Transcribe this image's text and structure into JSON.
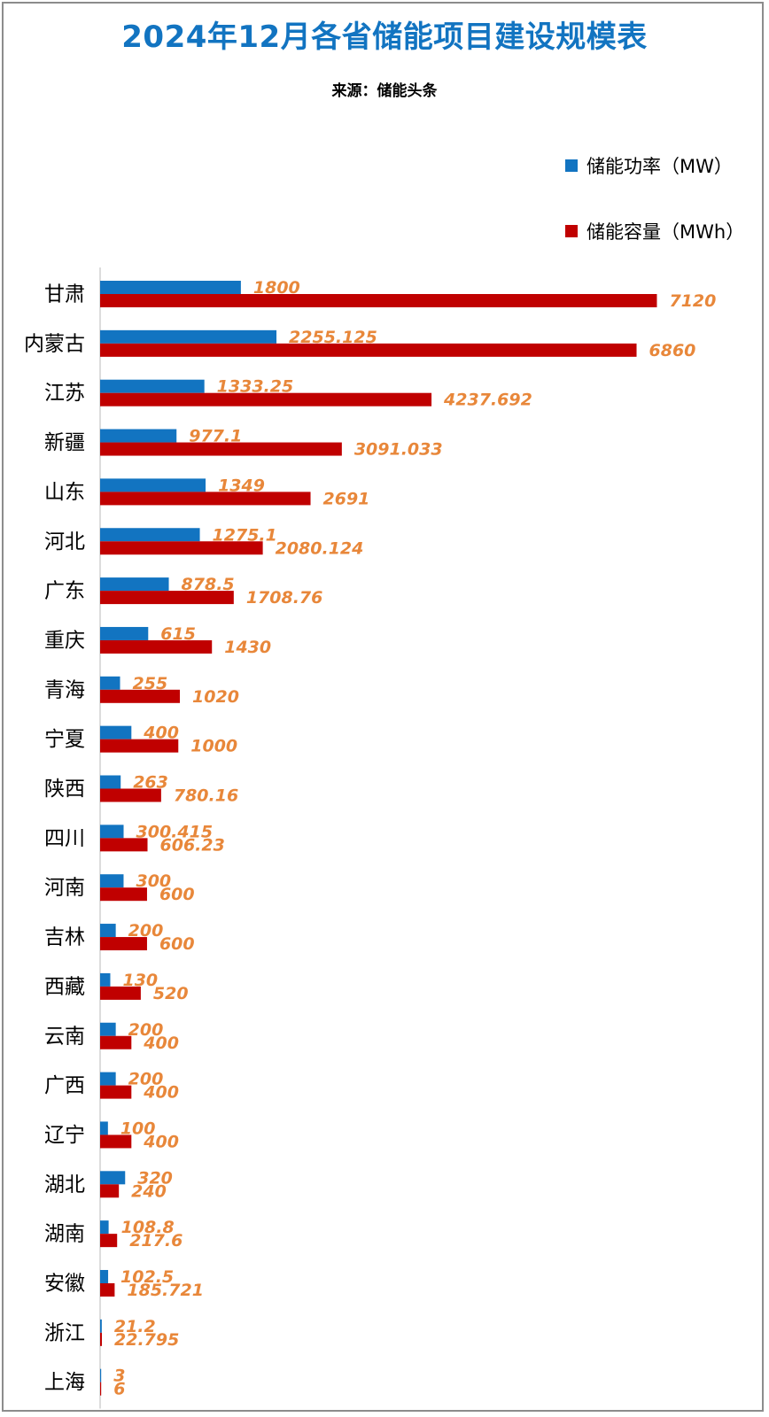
{
  "chart_data": {
    "type": "bar",
    "orientation": "horizontal",
    "title": "2024年12月各省储能项目建设规模表",
    "subtitle": "来源：储能头条",
    "categories": [
      "甘肃",
      "内蒙古",
      "江苏",
      "新疆",
      "山东",
      "河北",
      "广东",
      "重庆",
      "青海",
      "宁夏",
      "陕西",
      "四川",
      "河南",
      "吉林",
      "西藏",
      "云南",
      "广西",
      "辽宁",
      "湖北",
      "湖南",
      "安徽",
      "浙江",
      "上海"
    ],
    "series": [
      {
        "name": "储能功率（MW）",
        "color": "#1274c1",
        "values": [
          1800,
          2255.125,
          1333.25,
          977.1,
          1349,
          1275.1,
          878.5,
          615,
          255,
          400,
          263,
          300.415,
          300,
          200,
          130,
          200,
          200,
          100,
          320,
          108.8,
          102.5,
          21.2,
          3
        ],
        "labels": [
          "1800",
          "2255.125",
          "1333.25",
          "977.1",
          "1349",
          "1275.1",
          "878.5",
          "615",
          "255",
          "400",
          "263",
          "300.415",
          "300",
          "200",
          "130",
          "200",
          "200",
          "100",
          "320",
          "108.8",
          "102.5",
          "21.2",
          "3"
        ]
      },
      {
        "name": "储能容量（MWh）",
        "color": "#c00000",
        "values": [
          7120,
          6860,
          4237.692,
          3091.033,
          2691,
          2080.124,
          1708.76,
          1430,
          1020,
          1000,
          780.16,
          606.23,
          600,
          600,
          520,
          400,
          400,
          400,
          240,
          217.6,
          185.721,
          22.795,
          6
        ],
        "labels": [
          "7120",
          "6860",
          "4237.692",
          "3091.033",
          "2691",
          "2080.124",
          "1708.76",
          "1430",
          "1020",
          "1000",
          "780.16",
          "606.23",
          "600",
          "600",
          "520",
          "400",
          "400",
          "400",
          "240",
          "217.6",
          "185.721",
          "22.795",
          "6"
        ]
      }
    ],
    "xlim": [
      0,
      7160
    ],
    "grid": false,
    "legend": "top-right",
    "label_color": "#e8873a"
  }
}
